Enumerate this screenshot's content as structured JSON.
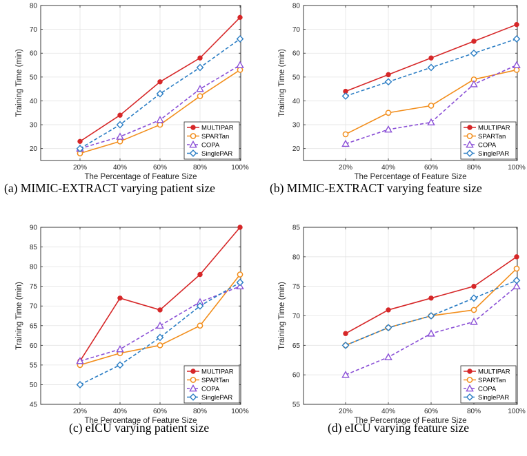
{
  "chart_data": [
    {
      "type": "line",
      "xlabel": "The Percentage of Feature Size",
      "ylabel": "Training Time (min)",
      "categories": [
        "20%",
        "40%",
        "60%",
        "80%",
        "100%"
      ],
      "ylim": [
        15,
        80
      ],
      "yticks": [
        20,
        30,
        40,
        50,
        60,
        70,
        80
      ],
      "grid": true,
      "legend_position": "bottom-right",
      "caption": "(a) MIMIC-EXTRACT varying patient size",
      "series": [
        {
          "name": "MULTIPAR",
          "values": [
            23,
            34,
            48,
            58,
            75
          ]
        },
        {
          "name": "SPARTan",
          "values": [
            18,
            23,
            30,
            42,
            53
          ]
        },
        {
          "name": "COPA",
          "values": [
            20,
            25,
            32,
            45,
            55
          ]
        },
        {
          "name": "SinglePAR",
          "values": [
            20,
            30,
            43,
            54,
            66
          ]
        }
      ]
    },
    {
      "type": "line",
      "xlabel": "The Percentage of Feature Size",
      "ylabel": "Training Time (min)",
      "categories": [
        "20%",
        "40%",
        "60%",
        "80%",
        "100%"
      ],
      "ylim": [
        15,
        80
      ],
      "yticks": [
        20,
        30,
        40,
        50,
        60,
        70,
        80
      ],
      "grid": true,
      "legend_position": "bottom-right",
      "caption": "(b) MIMIC-EXTRACT varying feature size",
      "series": [
        {
          "name": "MULTIPAR",
          "values": [
            44,
            51,
            58,
            65,
            72
          ]
        },
        {
          "name": "SPARTan",
          "values": [
            26,
            35,
            38,
            49,
            53
          ]
        },
        {
          "name": "COPA",
          "values": [
            22,
            28,
            31,
            47,
            55
          ]
        },
        {
          "name": "SinglePAR",
          "values": [
            42,
            48,
            54,
            60,
            66
          ]
        }
      ]
    },
    {
      "type": "line",
      "xlabel": "The Percentage of Feature Size",
      "ylabel": "Training Time (min)",
      "categories": [
        "20%",
        "40%",
        "60%",
        "80%",
        "100%"
      ],
      "ylim": [
        45,
        90
      ],
      "yticks": [
        45,
        50,
        55,
        60,
        65,
        70,
        75,
        80,
        85,
        90
      ],
      "grid": true,
      "legend_position": "bottom-right",
      "caption": "(c) eICU varying patient size",
      "series": [
        {
          "name": "MULTIPAR",
          "values": [
            56,
            72,
            69,
            78,
            90
          ]
        },
        {
          "name": "SPARTan",
          "values": [
            55,
            58,
            60,
            65,
            78
          ]
        },
        {
          "name": "COPA",
          "values": [
            56,
            59,
            65,
            71,
            75
          ]
        },
        {
          "name": "SinglePAR",
          "values": [
            50,
            55,
            62,
            70,
            76
          ]
        }
      ]
    },
    {
      "type": "line",
      "xlabel": "The Percentage of Feature Size",
      "ylabel": "Training Time (min)",
      "categories": [
        "20%",
        "40%",
        "60%",
        "80%",
        "100%"
      ],
      "ylim": [
        55,
        85
      ],
      "yticks": [
        55,
        60,
        65,
        70,
        75,
        80,
        85
      ],
      "grid": true,
      "legend_position": "bottom-right",
      "caption": "(d) eICU varying feature size",
      "series": [
        {
          "name": "MULTIPAR",
          "values": [
            67,
            71,
            73,
            75,
            80
          ]
        },
        {
          "name": "SPARTan",
          "values": [
            65,
            68,
            70,
            71,
            78
          ]
        },
        {
          "name": "COPA",
          "values": [
            60,
            63,
            67,
            69,
            75
          ]
        },
        {
          "name": "SinglePAR",
          "values": [
            65,
            68,
            70,
            73,
            76
          ]
        }
      ]
    }
  ],
  "series_style": {
    "MULTIPAR": {
      "color": "#d62728",
      "marker": "circle",
      "dash": "solid"
    },
    "SPARTan": {
      "color": "#f28e1c",
      "marker": "circle-open",
      "dash": "solid"
    },
    "COPA": {
      "color": "#8a4fd6",
      "marker": "triangle",
      "dash": "dashed"
    },
    "SinglePAR": {
      "color": "#2a7dc4",
      "marker": "diamond",
      "dash": "dashed"
    }
  }
}
